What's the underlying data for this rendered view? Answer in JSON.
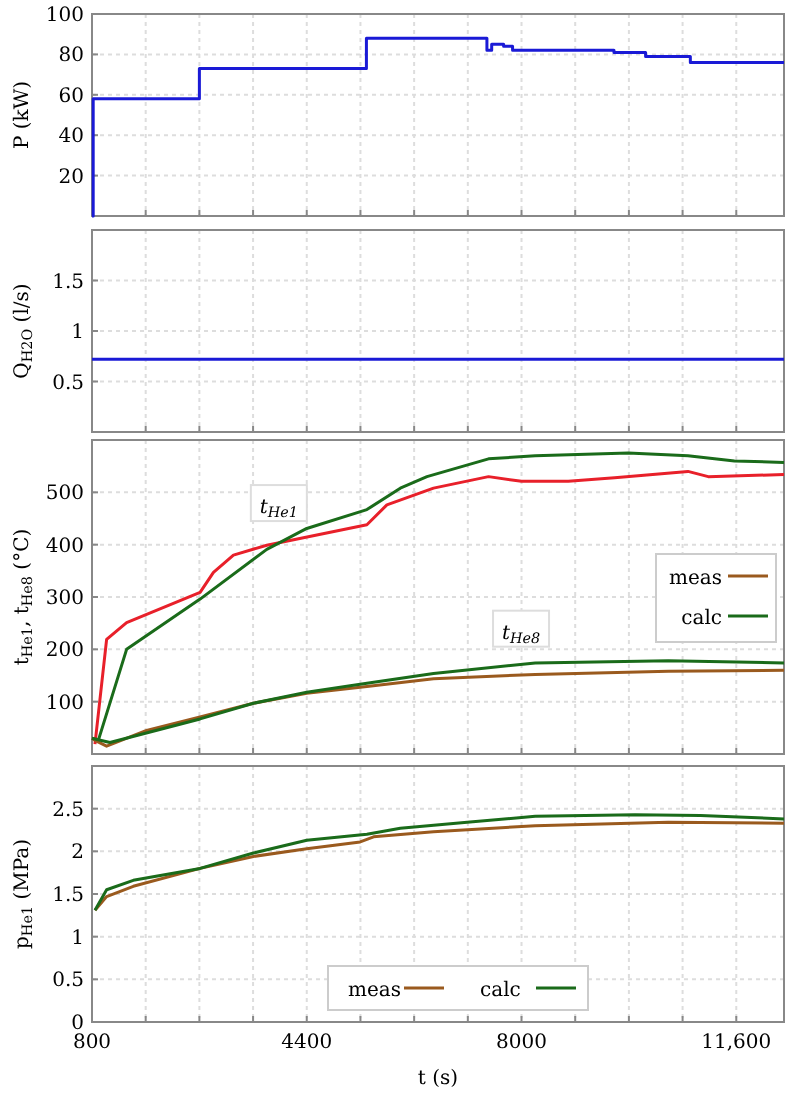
{
  "chart_data": [
    {
      "type": "step",
      "ylabel": "P (kW)",
      "xlim": [
        800,
        12400
      ],
      "ylim": [
        0,
        100
      ],
      "yticks": [
        20,
        40,
        60,
        80,
        100
      ],
      "xticks": [
        {
          "value": 800,
          "label": null
        },
        {
          "value": 1700,
          "label": null
        },
        {
          "value": 2600,
          "label": null
        },
        {
          "value": 3500,
          "label": null
        },
        {
          "value": 4400,
          "label": null
        },
        {
          "value": 5300,
          "label": null
        },
        {
          "value": 6200,
          "label": null
        },
        {
          "value": 7100,
          "label": null
        },
        {
          "value": 8000,
          "label": null
        },
        {
          "value": 8900,
          "label": null
        },
        {
          "value": 9800,
          "label": null
        },
        {
          "value": 10700,
          "label": null
        },
        {
          "value": 11600,
          "label": null
        }
      ],
      "grid": true,
      "tick_labels": "y",
      "series": [
        {
          "color": "#1a1ad6",
          "x": [
            800,
            820,
            2600,
            5400,
            7420,
            7500,
            7700,
            7850,
            9550,
            10080,
            10830,
            12400
          ],
          "values": [
            0,
            58,
            73,
            88,
            82,
            85,
            84,
            82,
            81,
            79,
            76,
            76
          ]
        }
      ]
    },
    {
      "type": "line",
      "ylabel": "Q$_{H2O}$ (l/s)",
      "xlim": [
        800,
        12400
      ],
      "ylim": [
        0,
        2
      ],
      "yticks": [
        0.5,
        1,
        1.5
      ],
      "xticks": [
        {
          "value": 800,
          "label": null
        },
        {
          "value": 1700,
          "label": null
        },
        {
          "value": 2600,
          "label": null
        },
        {
          "value": 3500,
          "label": null
        },
        {
          "value": 4400,
          "label": null
        },
        {
          "value": 5300,
          "label": null
        },
        {
          "value": 6200,
          "label": null
        },
        {
          "value": 7100,
          "label": null
        },
        {
          "value": 8000,
          "label": null
        },
        {
          "value": 8900,
          "label": null
        },
        {
          "value": 9800,
          "label": null
        },
        {
          "value": 10700,
          "label": null
        },
        {
          "value": 11600,
          "label": null
        }
      ],
      "grid": true,
      "tick_labels": "y",
      "series": [
        {
          "color": "#1a1ad6",
          "x": [
            800,
            12400
          ],
          "values": [
            0.72,
            0.72
          ]
        }
      ]
    },
    {
      "type": "line",
      "ylabel": "t$_{He1}$, t$_{He8}$ (°C)",
      "xlim": [
        800,
        12400
      ],
      "ylim": [
        0,
        600
      ],
      "yticks": [
        100,
        200,
        300,
        400,
        500
      ],
      "xticks": [
        {
          "value": 800,
          "label": null
        },
        {
          "value": 1700,
          "label": null
        },
        {
          "value": 2600,
          "label": null
        },
        {
          "value": 3500,
          "label": null
        },
        {
          "value": 4400,
          "label": null
        },
        {
          "value": 5300,
          "label": null
        },
        {
          "value": 6200,
          "label": null
        },
        {
          "value": 7100,
          "label": null
        },
        {
          "value": 8000,
          "label": null
        },
        {
          "value": 8900,
          "label": null
        },
        {
          "value": 9800,
          "label": null
        },
        {
          "value": 10700,
          "label": null
        },
        {
          "value": 11600,
          "label": null
        }
      ],
      "grid": true,
      "tick_labels": "y",
      "legend": "right",
      "annotations": [
        "t$_{He1}$",
        "t$_{He8}$"
      ],
      "series": [
        {
          "color": "#e8202a",
          "x": [
            850,
            1045,
            1380,
            2612,
            2836,
            3171,
            3730,
            5408,
            5743,
            6525,
            7447,
            8000,
            8784,
            9560,
            10790,
            11130,
            12400
          ],
          "values": [
            19,
            219,
            251,
            309,
            347,
            380,
            399,
            438,
            476,
            508,
            530,
            521,
            521,
            528,
            540,
            530,
            534
          ]
        },
        {
          "color": "#1a6b1a",
          "x": [
            800,
            906,
            1380,
            2612,
            3730,
            4400,
            5408,
            5968,
            6415,
            7447,
            8230,
            9790,
            10790,
            11570,
            12400
          ],
          "values": [
            30,
            26,
            200,
            296,
            391,
            431,
            467,
            508,
            530,
            564,
            570,
            575,
            570,
            560,
            557
          ]
        },
        {
          "name": "meas",
          "color": "#9a5a1e",
          "x": [
            800,
            850,
            1045,
            1715,
            2612,
            3506,
            4400,
            5408,
            6525,
            8230,
            10460,
            12400
          ],
          "values": [
            30,
            26,
            15,
            45,
            71,
            97,
            116,
            129,
            144,
            152,
            158,
            160
          ]
        },
        {
          "name": "calc",
          "color": "#1a6b1a",
          "x": [
            800,
            1100,
            2612,
            3506,
            4400,
            5408,
            6525,
            8230,
            10460,
            12400
          ],
          "values": [
            30,
            22,
            67,
            97,
            118,
            135,
            154,
            174,
            178,
            174
          ]
        }
      ]
    },
    {
      "type": "line",
      "ylabel": "p$_{He1}$ (MPa)",
      "xlabel": "t (s)",
      "xlim": [
        800,
        12400
      ],
      "ylim": [
        0,
        3
      ],
      "yticks": [
        0,
        0.5,
        1,
        1.5,
        2,
        2.5
      ],
      "xticks": [
        800,
        {
          "value": 1700,
          "label": null
        },
        {
          "value": 2600,
          "label": null
        },
        {
          "value": 3500,
          "label": null
        },
        4400,
        {
          "value": 5300,
          "label": null
        },
        {
          "value": 6200,
          "label": null
        },
        {
          "value": 7100,
          "label": null
        },
        8000,
        {
          "value": 8900,
          "label": null
        },
        {
          "value": 9800,
          "label": null
        },
        {
          "value": 10700,
          "label": null
        },
        {
          "value": 11600,
          "label": "11,600"
        }
      ],
      "grid": true,
      "legend": "bottom",
      "series": [
        {
          "name": "meas",
          "color": "#9a5a1e",
          "x": [
            850,
            1045,
            1492,
            2612,
            3506,
            4400,
            5296,
            5520,
            6525,
            8230,
            10460,
            12400
          ],
          "values": [
            1.31,
            1.47,
            1.59,
            1.8,
            1.94,
            2.03,
            2.11,
            2.17,
            2.23,
            2.3,
            2.34,
            2.33
          ]
        },
        {
          "name": "calc",
          "color": "#1a6b1a",
          "x": [
            850,
            1045,
            1492,
            2612,
            3506,
            4400,
            5408,
            5968,
            7089,
            8230,
            9900,
            11000,
            12400
          ],
          "values": [
            1.31,
            1.55,
            1.66,
            1.8,
            1.98,
            2.13,
            2.2,
            2.27,
            2.34,
            2.41,
            2.43,
            2.42,
            2.38
          ]
        }
      ]
    }
  ]
}
